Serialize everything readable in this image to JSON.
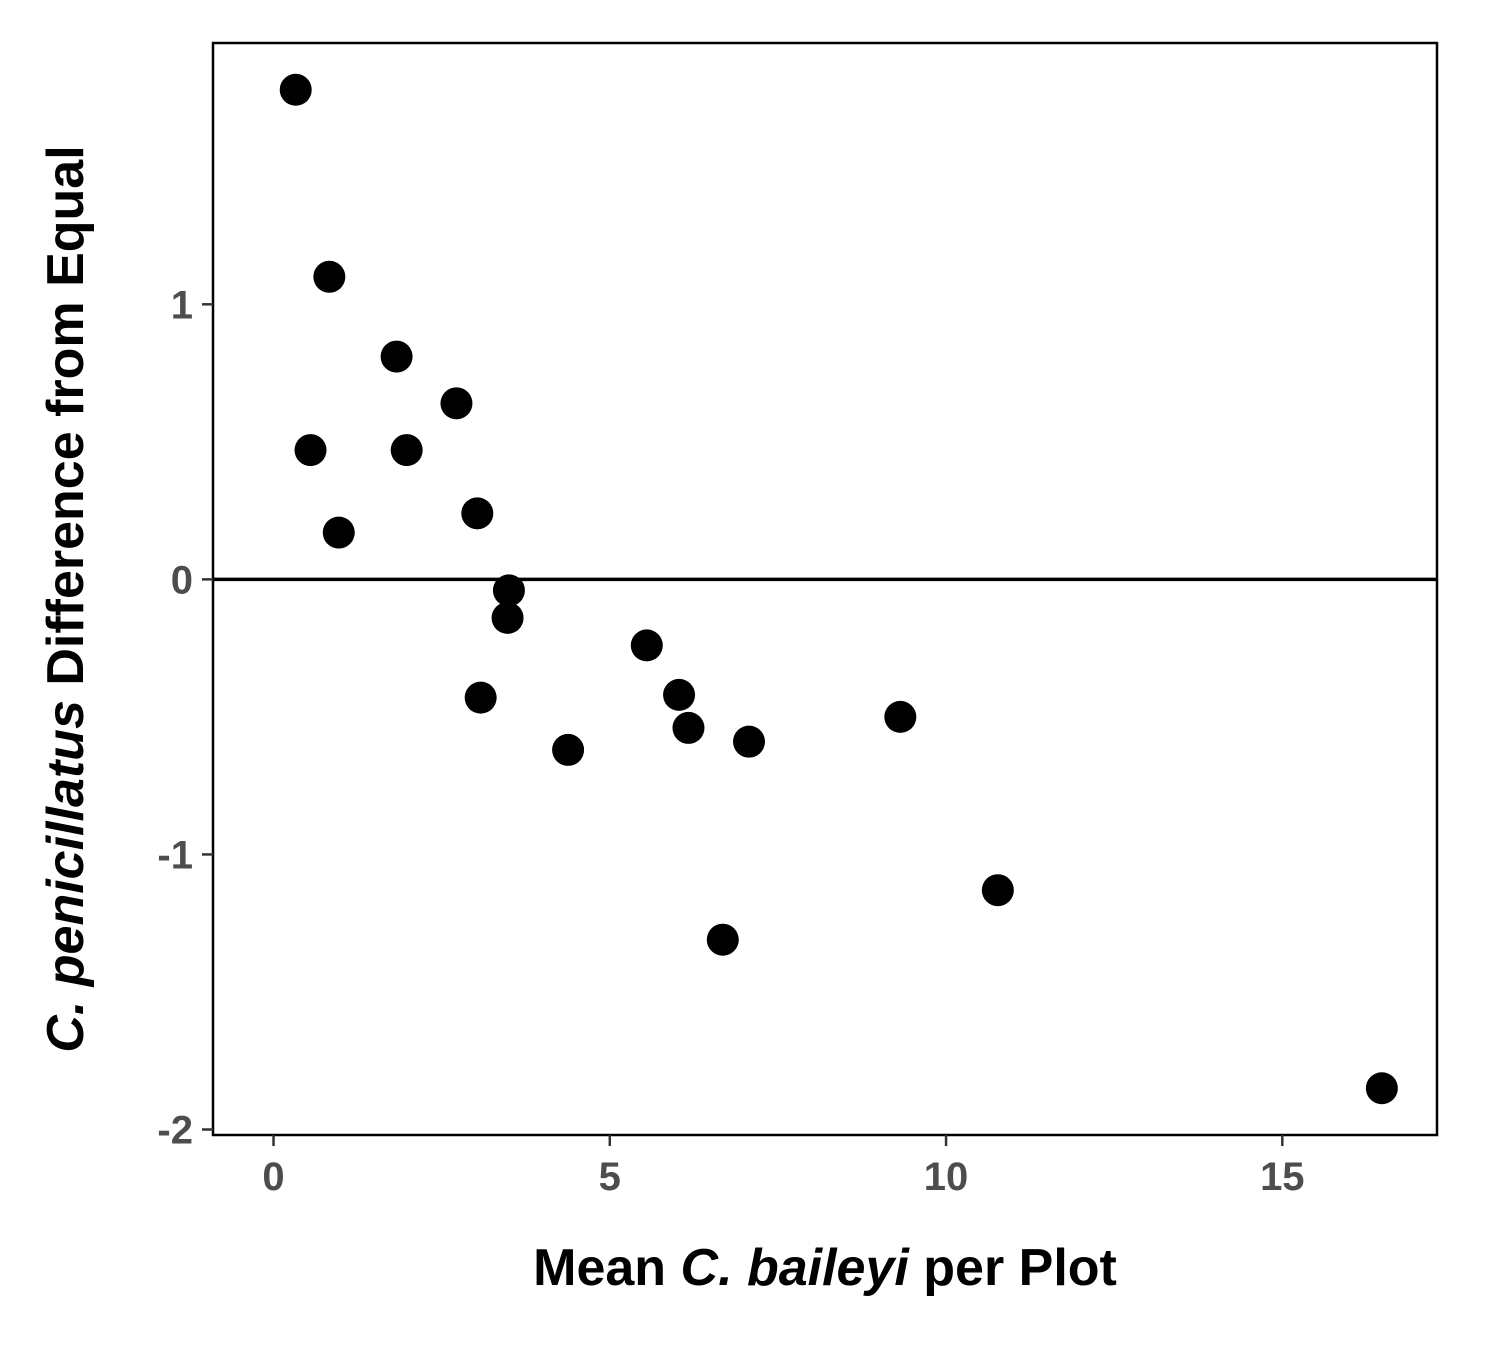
{
  "chart_data": {
    "type": "scatter",
    "title": "",
    "xlabel": {
      "parts": [
        {
          "text": "Mean ",
          "italic": false
        },
        {
          "text": "C. baileyi",
          "italic": true
        },
        {
          "text": " per Plot",
          "italic": false
        }
      ]
    },
    "ylabel": {
      "parts": [
        {
          "text": "C. penicillatus",
          "italic": true
        },
        {
          "text": " Difference from Equal",
          "italic": false
        }
      ]
    },
    "xlim": [
      -0.9,
      17.3
    ],
    "ylim": [
      -2.02,
      1.95
    ],
    "xticks": [
      0,
      5,
      10,
      15
    ],
    "xtick_labels": [
      "0",
      "5",
      "10",
      "15"
    ],
    "yticks": [
      -2,
      -1,
      0,
      1
    ],
    "ytick_labels": [
      "-2",
      "-1",
      "0",
      "1"
    ],
    "hline": 0,
    "grid": false,
    "colors": {
      "points": "#000000",
      "axis": "#000000",
      "tick_text": "#4d4d4d"
    },
    "points": [
      {
        "x": 0.33,
        "y": 1.78
      },
      {
        "x": 0.83,
        "y": 1.1
      },
      {
        "x": 0.55,
        "y": 0.47
      },
      {
        "x": 0.97,
        "y": 0.17
      },
      {
        "x": 1.83,
        "y": 0.81
      },
      {
        "x": 1.98,
        "y": 0.47
      },
      {
        "x": 2.72,
        "y": 0.64
      },
      {
        "x": 3.03,
        "y": 0.24
      },
      {
        "x": 3.5,
        "y": -0.04
      },
      {
        "x": 3.48,
        "y": -0.14
      },
      {
        "x": 3.08,
        "y": -0.43
      },
      {
        "x": 4.38,
        "y": -0.62
      },
      {
        "x": 5.55,
        "y": -0.24
      },
      {
        "x": 6.03,
        "y": -0.42
      },
      {
        "x": 6.17,
        "y": -0.54
      },
      {
        "x": 7.07,
        "y": -0.59
      },
      {
        "x": 6.68,
        "y": -1.31
      },
      {
        "x": 9.32,
        "y": -0.5
      },
      {
        "x": 10.77,
        "y": -1.13
      },
      {
        "x": 16.48,
        "y": -1.85
      }
    ]
  }
}
